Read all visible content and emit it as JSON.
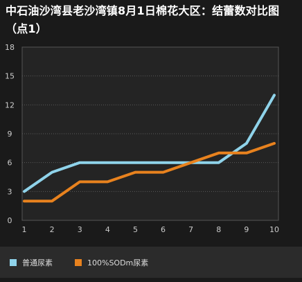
{
  "chart_data": {
    "type": "line",
    "title": "中石油沙湾县老沙湾镇8月1日棉花大区：结蕾数对比图（点1）",
    "x": [
      1,
      2,
      3,
      4,
      5,
      6,
      7,
      8,
      9,
      10
    ],
    "series": [
      {
        "name": "普通尿素",
        "color": "#8fd3ea",
        "values": [
          3,
          5,
          6,
          6,
          6,
          6,
          6,
          6,
          8,
          13
        ]
      },
      {
        "name": "100%SODm尿素",
        "color": "#e8821e",
        "values": [
          2,
          2,
          4,
          4,
          5,
          5,
          6,
          7,
          7,
          8
        ]
      }
    ],
    "xlabel": "",
    "ylabel": "",
    "ylim": [
      0,
      18
    ],
    "yticks": [
      0,
      3,
      6,
      9,
      12,
      15,
      18
    ],
    "grid": true,
    "legend_position": "bottom"
  }
}
